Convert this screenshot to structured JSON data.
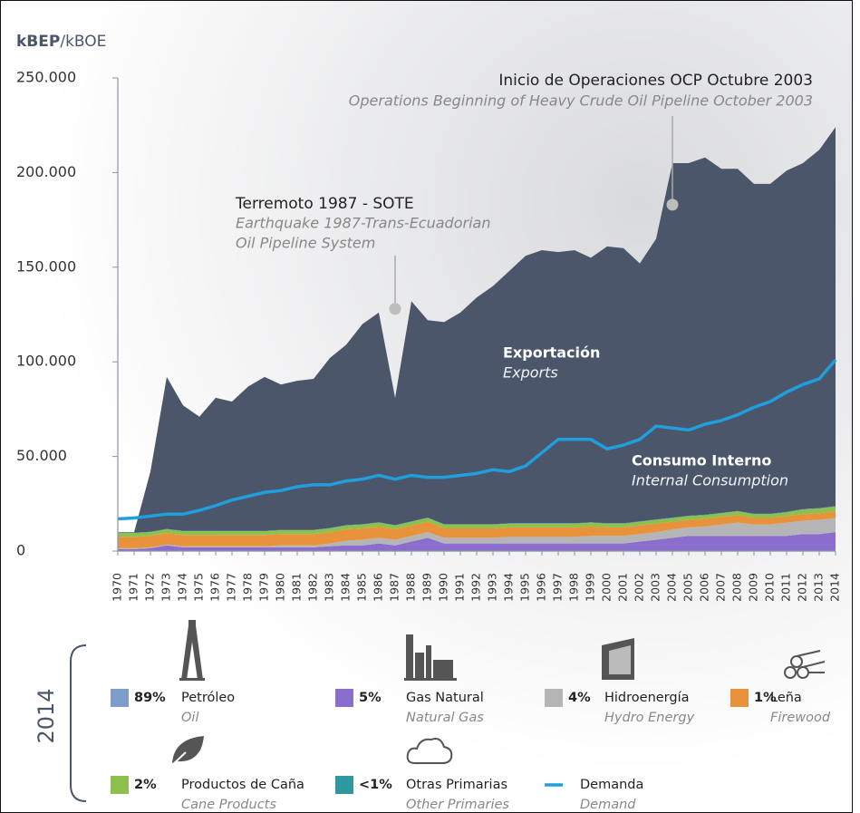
{
  "chart_data": {
    "type": "area",
    "y_label_bold": "kBEP",
    "y_label_rest": "/kBOE",
    "x": [
      1970,
      1971,
      1972,
      1973,
      1974,
      1975,
      1976,
      1977,
      1978,
      1979,
      1980,
      1981,
      1982,
      1983,
      1984,
      1985,
      1986,
      1987,
      1988,
      1989,
      1990,
      1991,
      1992,
      1993,
      1994,
      1995,
      1996,
      1997,
      1998,
      1999,
      2000,
      2001,
      2002,
      2003,
      2004,
      2005,
      2006,
      2007,
      2008,
      2009,
      2010,
      2011,
      2012,
      2013,
      2014
    ],
    "xlim": [
      1970,
      2014
    ],
    "ylim": [
      0,
      250000
    ],
    "yticks": [
      0,
      {
        "value": 50000,
        "label": "50.000"
      },
      {
        "value": 100000,
        "label": "100.000"
      },
      {
        "value": 150000,
        "label": "150.000"
      },
      {
        "value": 200000,
        "label": "200.000"
      },
      {
        "value": 250000,
        "label": "250.000"
      }
    ],
    "series": [
      {
        "name": "Gas Natural",
        "name_en": "Natural Gas",
        "share": "5%",
        "color": "#8a6dcc",
        "values": [
          1000,
          1000,
          1500,
          3000,
          2000,
          2000,
          2000,
          2000,
          2000,
          2000,
          2000,
          2000,
          2000,
          2500,
          3000,
          3000,
          4000,
          3000,
          5000,
          7000,
          4000,
          4000,
          4000,
          4000,
          4000,
          4000,
          4000,
          4000,
          4000,
          4000,
          4000,
          4000,
          5000,
          6000,
          7000,
          8000,
          8000,
          8000,
          8000,
          8000,
          8000,
          8000,
          9000,
          9000,
          10000
        ]
      },
      {
        "name": "Hidroenergía",
        "name_en": "Hydro Energy",
        "share": "4%",
        "color": "#b5b5b7",
        "values": [
          500,
          500,
          500,
          500,
          500,
          500,
          500,
          500,
          500,
          500,
          1000,
          1000,
          1000,
          1500,
          2500,
          3000,
          3000,
          3000,
          3000,
          3000,
          3000,
          3000,
          3000,
          3000,
          3500,
          3500,
          3500,
          3500,
          3500,
          4000,
          4000,
          4000,
          4000,
          4000,
          4500,
          4500,
          5000,
          6000,
          7000,
          6000,
          6000,
          7000,
          7000,
          7500,
          7500
        ]
      },
      {
        "name": "Leña",
        "name_en": "Firewood",
        "share": "1%",
        "color": "#e8933c",
        "values": [
          6000,
          6000,
          6000,
          6000,
          6000,
          6000,
          6000,
          6000,
          6000,
          6000,
          6000,
          6000,
          6000,
          6000,
          6000,
          6000,
          6000,
          5500,
          5500,
          5500,
          5000,
          5000,
          5000,
          5000,
          5000,
          5000,
          5000,
          5000,
          5000,
          5000,
          4500,
          4500,
          4500,
          4500,
          4000,
          4000,
          4000,
          4000,
          4000,
          3500,
          3500,
          3500,
          3500,
          3500,
          3500
        ]
      },
      {
        "name": "Productos de Caña",
        "name_en": "Cane Products",
        "share": "2%",
        "color": "#8dc04c",
        "values": [
          2000,
          2000,
          2000,
          2000,
          2000,
          2000,
          2000,
          2000,
          2000,
          2000,
          2000,
          2000,
          2000,
          2000,
          2000,
          2000,
          2000,
          2000,
          2000,
          2000,
          2000,
          2000,
          2000,
          2000,
          2000,
          2000,
          2000,
          2000,
          2000,
          2000,
          2000,
          2000,
          2000,
          2000,
          2000,
          2000,
          2000,
          2000,
          2000,
          2000,
          2000,
          2000,
          2500,
          2500,
          2500
        ]
      },
      {
        "name": "Otras Primarias",
        "name_en": "Other Primaries",
        "share": "<1%",
        "color": "#2e97a0",
        "values": [
          200,
          200,
          200,
          200,
          200,
          200,
          200,
          200,
          200,
          200,
          200,
          200,
          200,
          200,
          200,
          200,
          200,
          200,
          200,
          200,
          200,
          200,
          200,
          200,
          200,
          200,
          200,
          200,
          200,
          200,
          200,
          200,
          200,
          200,
          200,
          200,
          200,
          200,
          200,
          200,
          200,
          200,
          200,
          200,
          200
        ]
      },
      {
        "name": "Petróleo",
        "name_en": "Oil",
        "share": "89%",
        "color": "#4b566b",
        "legend_color": "#7e9dc8",
        "values": [
          300,
          300,
          31800,
          80300,
          66300,
          60300,
          70300,
          68300,
          76300,
          81300,
          76800,
          78800,
          79800,
          89800,
          95300,
          105800,
          110800,
          67300,
          116300,
          104300,
          106800,
          111800,
          119800,
          125800,
          133300,
          141300,
          144300,
          143300,
          144300,
          139800,
          146300,
          145300,
          136300,
          148300,
          187300,
          186300,
          188800,
          181800,
          180800,
          174300,
          174300,
          180300,
          182800,
          189300,
          200300
        ]
      },
      {
        "name": "Demanda",
        "name_en": "Demand",
        "type": "line",
        "color": "#1f9fdc",
        "values": [
          17000,
          17500,
          18500,
          19500,
          19500,
          21500,
          24000,
          27000,
          29000,
          31000,
          32000,
          34000,
          35000,
          35000,
          37000,
          38000,
          40000,
          38000,
          40000,
          39000,
          39000,
          40000,
          41000,
          43000,
          42000,
          45000,
          52000,
          59000,
          59000,
          59000,
          54000,
          56000,
          59000,
          66000,
          65000,
          64000,
          67000,
          69000,
          72000,
          76000,
          79000,
          84000,
          88000,
          91000,
          101000
        ]
      }
    ],
    "annotations": [
      {
        "x": 1987,
        "y": 128000,
        "lines": [
          "Terremoto 1987 - SOTE",
          "Earthquake 1987-Trans-Ecuadorian",
          "Oil Pipeline System"
        ]
      },
      {
        "x": 2004,
        "y": 183000,
        "lines": [
          "Inicio de Operaciones OCP Octubre 2003",
          "Operations Beginning of Heavy Crude Oil Pipeline October 2003"
        ]
      }
    ],
    "area_labels": [
      {
        "text": "Exportación",
        "text_en": "Exports"
      },
      {
        "text": "Consumo Interno",
        "text_en": "Internal Consumption"
      }
    ],
    "legend_year": "2014"
  }
}
